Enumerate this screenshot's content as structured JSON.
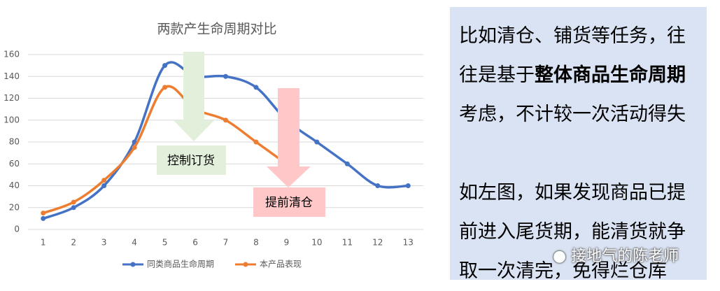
{
  "chart_data": {
    "type": "line",
    "title": "两款产生命周期对比",
    "categories": [
      "1",
      "2",
      "3",
      "4",
      "5",
      "6",
      "7",
      "8",
      "9",
      "10",
      "11",
      "12",
      "13"
    ],
    "series": [
      {
        "name": "同类商品生命周期",
        "color": "#4472c4",
        "values": [
          10,
          20,
          40,
          80,
          150,
          140,
          140,
          130,
          100,
          80,
          60,
          40,
          40
        ]
      },
      {
        "name": "本产品表现",
        "color": "#ed7d31",
        "values": [
          15,
          25,
          45,
          75,
          130,
          110,
          100,
          80,
          60,
          null,
          null,
          null,
          null
        ]
      }
    ],
    "ylim": [
      0,
      160
    ],
    "yticks": [
      0,
      20,
      40,
      60,
      80,
      100,
      120,
      140,
      160
    ],
    "grid": true,
    "smooth": true,
    "legend": "bottom",
    "annotations": [
      "控制订货",
      "提前清仓"
    ]
  },
  "panel": {
    "paragraphs": [
      {
        "before": "比如清仓、铺货等任务，往往是基于",
        "bold": "整体商品生命周期",
        "after": "考虑，不计较一次活动得失"
      },
      {
        "before": "如左图，如果发现商品已提前进入尾货期，能清货就争取一次清完，免得烂仓库"
      }
    ]
  },
  "watermark": "接地气的陈老师"
}
